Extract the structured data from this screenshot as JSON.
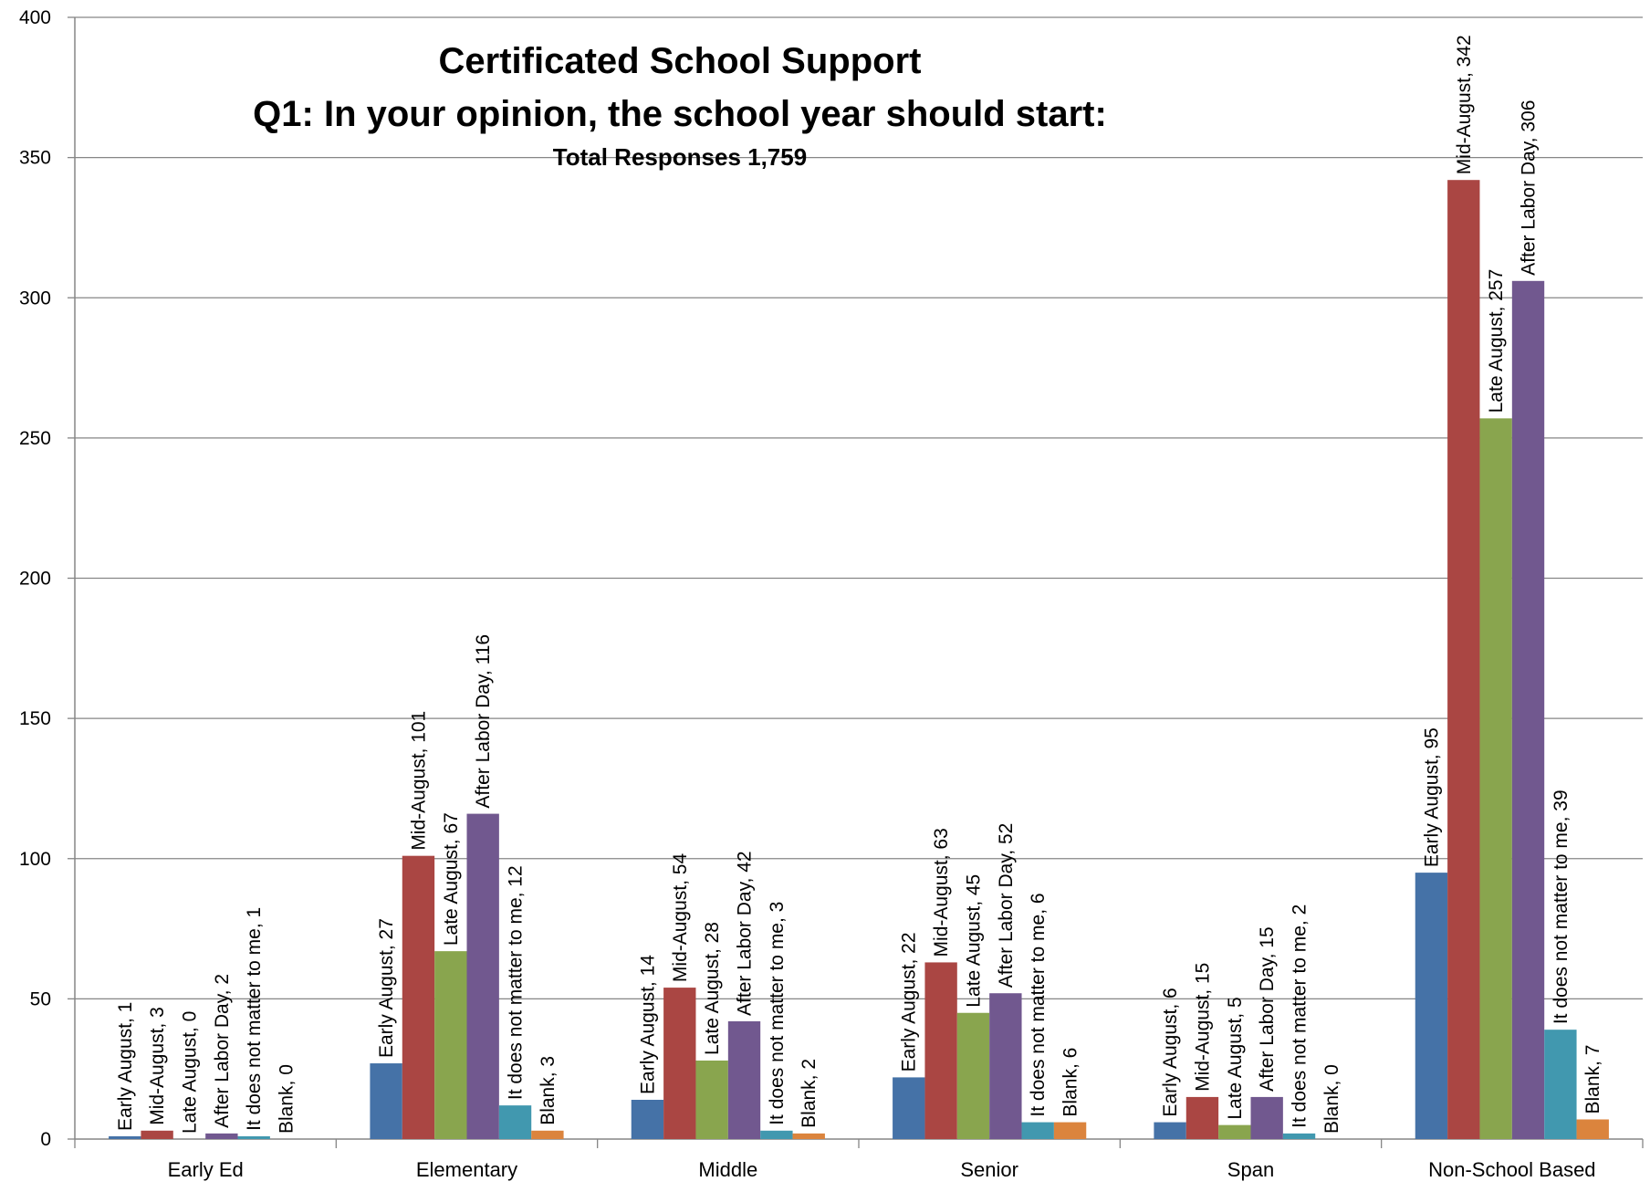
{
  "chart_data": {
    "type": "bar",
    "title": "Certificated School Support",
    "subtitle": "Q1: In your opinion, the school year should start:",
    "note": "Total Responses 1,759",
    "xlabel": "",
    "ylabel": "",
    "ylim": [
      0,
      400
    ],
    "yticks": [
      0,
      50,
      100,
      150,
      200,
      250,
      300,
      350,
      400
    ],
    "grid": true,
    "categories": [
      "Early Ed",
      "Elementary",
      "Middle",
      "Senior",
      "Span",
      "Non-School Based"
    ],
    "series": [
      {
        "name": "Early August",
        "color": "#4572A7",
        "values": [
          1,
          27,
          14,
          22,
          6,
          95
        ]
      },
      {
        "name": "Mid-August",
        "color": "#AA4643",
        "values": [
          3,
          101,
          54,
          63,
          15,
          342
        ]
      },
      {
        "name": "Late August",
        "color": "#89A54E",
        "values": [
          0,
          67,
          28,
          45,
          5,
          257
        ]
      },
      {
        "name": "After Labor Day",
        "color": "#71588F",
        "values": [
          2,
          116,
          42,
          52,
          15,
          306
        ]
      },
      {
        "name": "It does not matter to me",
        "color": "#4198AF",
        "values": [
          1,
          12,
          3,
          6,
          2,
          39
        ]
      },
      {
        "name": "Blank",
        "color": "#DB843D",
        "values": [
          0,
          3,
          2,
          6,
          0,
          7
        ]
      }
    ]
  }
}
